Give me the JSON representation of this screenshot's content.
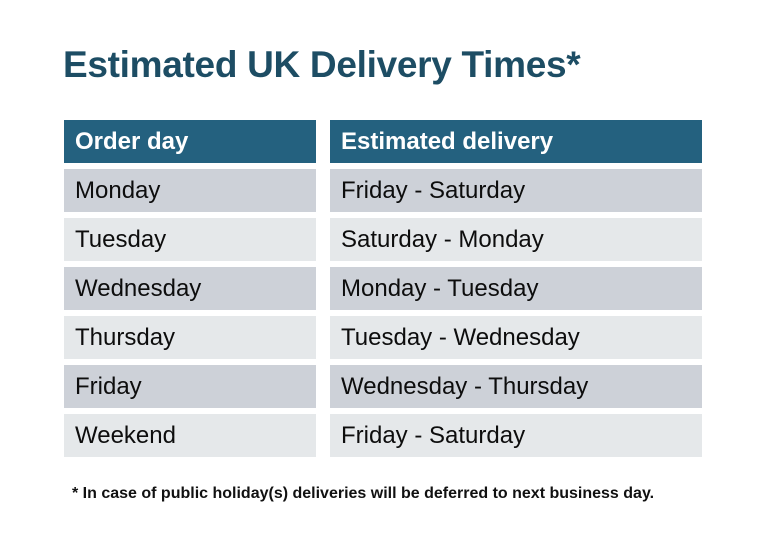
{
  "page": {
    "title": "Estimated UK Delivery Times*",
    "footnote": "* In case of public holiday(s) deliveries will be deferred to next business day."
  },
  "table": {
    "columns": {
      "order_day": "Order day",
      "estimated_delivery": "Estimated delivery"
    },
    "rows": [
      {
        "order_day": "Monday",
        "estimated_delivery": "Friday - Saturday"
      },
      {
        "order_day": "Tuesday",
        "estimated_delivery": "Saturday - Monday"
      },
      {
        "order_day": "Wednesday",
        "estimated_delivery": "Monday - Tuesday"
      },
      {
        "order_day": "Thursday",
        "estimated_delivery": "Tuesday - Wednesday"
      },
      {
        "order_day": "Friday",
        "estimated_delivery": "Wednesday - Thursday"
      },
      {
        "order_day": "Weekend",
        "estimated_delivery": "Friday - Saturday"
      }
    ]
  },
  "colors": {
    "title_text": "#1d4d64",
    "header_bg": "#24617f",
    "header_text": "#ffffff",
    "row_dark": "#cdd1d8",
    "row_light": "#e5e8ea",
    "cell_text": "#0d0d0d",
    "background": "#ffffff"
  }
}
